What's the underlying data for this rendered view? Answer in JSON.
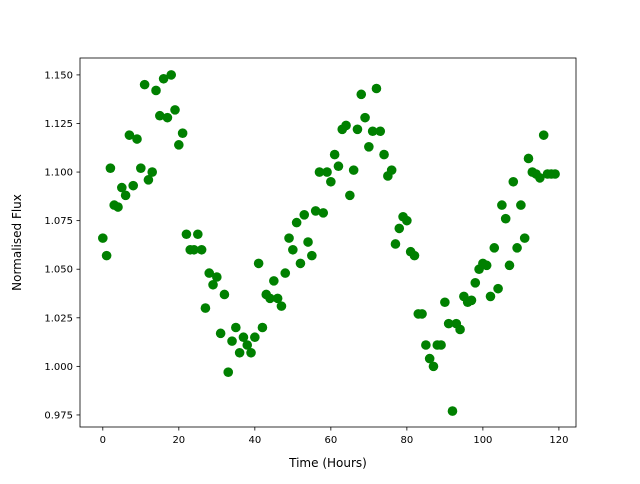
{
  "chart_data": {
    "type": "scatter",
    "title": "",
    "xlabel": "Time (Hours)",
    "ylabel": "Normalised Flux",
    "xlim": [
      -6,
      124.5
    ],
    "ylim": [
      0.9688,
      1.1587
    ],
    "xticks": [
      0,
      20,
      40,
      60,
      80,
      100,
      120
    ],
    "xtick_labels": [
      "0",
      "20",
      "40",
      "60",
      "80",
      "100",
      "120"
    ],
    "yticks": [
      0.975,
      1.0,
      1.025,
      1.05,
      1.075,
      1.1,
      1.125,
      1.15
    ],
    "ytick_labels": [
      "0.975",
      "1.000",
      "1.025",
      "1.050",
      "1.075",
      "1.100",
      "1.125",
      "1.150"
    ],
    "grid": false,
    "marker_color": "#008000",
    "x": [
      0,
      1,
      2,
      3,
      4,
      5,
      6,
      7,
      8,
      9,
      10,
      11,
      12,
      13,
      14,
      15,
      16,
      17,
      18,
      19,
      20,
      21,
      22,
      23,
      24,
      25,
      26,
      27,
      28,
      29,
      30,
      31,
      32,
      33,
      34,
      35,
      36,
      37,
      38,
      39,
      40,
      41,
      42,
      43,
      44,
      45,
      46,
      47,
      48,
      49,
      50,
      51,
      52,
      53,
      54,
      55,
      56,
      57,
      58,
      59,
      60,
      61,
      62,
      63,
      64,
      65,
      66,
      67,
      68,
      69,
      70,
      71,
      72,
      73,
      74,
      75,
      76,
      77,
      78,
      79,
      80,
      81,
      82,
      83,
      84,
      85,
      86,
      87,
      88,
      89,
      90,
      91,
      92,
      93,
      94,
      95,
      96,
      97,
      98,
      99,
      100,
      101,
      102,
      103,
      104,
      105,
      106,
      107,
      108,
      109,
      110,
      111,
      112,
      113,
      114,
      115,
      116,
      117,
      118,
      119
    ],
    "y": [
      1.066,
      1.057,
      1.102,
      1.083,
      1.082,
      1.092,
      1.088,
      1.119,
      1.093,
      1.117,
      1.102,
      1.145,
      1.096,
      1.1,
      1.142,
      1.129,
      1.148,
      1.128,
      1.15,
      1.132,
      1.114,
      1.12,
      1.068,
      1.06,
      1.06,
      1.068,
      1.06,
      1.03,
      1.048,
      1.042,
      1.046,
      1.017,
      1.037,
      0.997,
      1.013,
      1.02,
      1.007,
      1.015,
      1.011,
      1.007,
      1.015,
      1.053,
      1.02,
      1.037,
      1.035,
      1.044,
      1.035,
      1.031,
      1.048,
      1.066,
      1.06,
      1.074,
      1.053,
      1.078,
      1.064,
      1.057,
      1.08,
      1.1,
      1.079,
      1.1,
      1.095,
      1.109,
      1.103,
      1.122,
      1.124,
      1.088,
      1.101,
      1.122,
      1.14,
      1.128,
      1.113,
      1.121,
      1.143,
      1.121,
      1.109,
      1.098,
      1.101,
      1.063,
      1.071,
      1.077,
      1.075,
      1.059,
      1.057,
      1.027,
      1.027,
      1.011,
      1.004,
      1.0,
      1.011,
      1.011,
      1.033,
      1.022,
      0.977,
      1.022,
      1.019,
      1.036,
      1.033,
      1.034,
      1.043,
      1.05,
      1.053,
      1.052,
      1.036,
      1.061,
      1.04,
      1.083,
      1.076,
      1.052,
      1.095,
      1.061,
      1.083,
      1.066,
      1.107,
      1.1,
      1.099,
      1.097,
      1.119,
      1.099,
      1.099,
      1.099
    ]
  }
}
